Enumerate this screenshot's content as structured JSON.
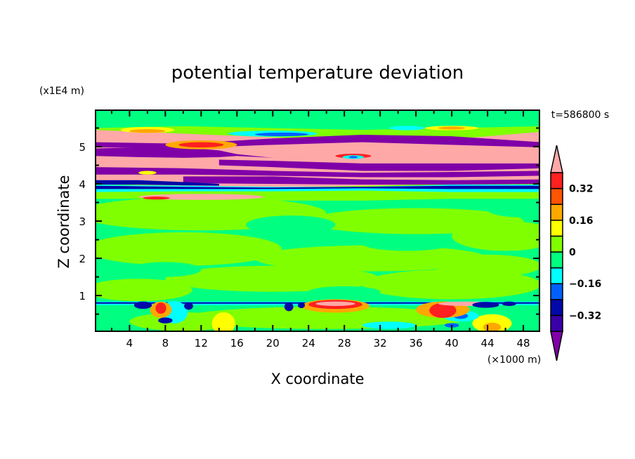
{
  "chart_data": {
    "type": "contour",
    "title": "potential temperature deviation",
    "xlabel": "X coordinate",
    "ylabel": "Z coordinate",
    "x_unit_label": "(×1000 m)",
    "y_unit_label": "(x1E4 m)",
    "time_label": "t=586800 s",
    "xlim": [
      0.2,
      49.8
    ],
    "ylim": [
      0.04,
      5.98
    ],
    "xticks": [
      4,
      8,
      12,
      16,
      20,
      24,
      28,
      32,
      36,
      40,
      44,
      48
    ],
    "xtick_labels": [
      "4",
      "8",
      "12",
      "16",
      "20",
      "24",
      "28",
      "32",
      "36",
      "40",
      "44",
      "48"
    ],
    "x_minor_step": 2,
    "yticks": [
      1,
      2,
      3,
      4,
      5
    ],
    "ytick_labels": [
      "1",
      "2",
      "3",
      "4",
      "5"
    ],
    "y_minor_step": 0.5,
    "colorbar": {
      "levels": [
        -0.4,
        -0.32,
        -0.24,
        -0.16,
        -0.08,
        0,
        0.08,
        0.16,
        0.24,
        0.32,
        0.4
      ],
      "colors": [
        "#3a00a8",
        "#0008a8",
        "#0060ff",
        "#00ffff",
        "#00ff80",
        "#80ff00",
        "#ffff00",
        "#ffa800",
        "#ff5400",
        "#ff2020"
      ],
      "over_color": "#ffa8a8",
      "under_color": "#8000a8",
      "tick_labels": [
        {
          "value": 0.32,
          "label": "0.32"
        },
        {
          "value": 0.16,
          "label": "0.16"
        },
        {
          "value": 0,
          "label": "0"
        },
        {
          "value": -0.16,
          "label": "−0.16"
        },
        {
          "value": -0.32,
          "label": "−0.32"
        }
      ]
    },
    "background_level": "S",
    "level_keys": {
      "U": "#8000a8",
      "I": "#3a00a8",
      "N": "#0008a8",
      "B": "#0060ff",
      "Cy": "#00ffff",
      "S": "#00ff80",
      "C": "#80ff00",
      "Y": "#ffff00",
      "O": "#ffa800",
      "OR": "#ff5400",
      "R": "#ff2020",
      "P": "#ffa8a8"
    },
    "bands": [
      {
        "level": "C",
        "x": [
          0,
          10,
          20,
          30,
          40,
          50
        ],
        "top": [
          5.5,
          5.55,
          5.5,
          5.45,
          5.5,
          5.55
        ],
        "bot": [
          3.6,
          3.6,
          3.55,
          3.55,
          3.6,
          3.6
        ]
      },
      {
        "level": "P",
        "x": [
          0,
          10,
          20,
          30,
          40,
          50
        ],
        "top": [
          5.45,
          5.35,
          5.25,
          5.15,
          5.2,
          5.4
        ],
        "bot": [
          4.0,
          3.95,
          3.9,
          3.95,
          4.0,
          4.0
        ]
      },
      {
        "level": "Cy",
        "x": [
          0,
          10,
          20,
          30,
          40,
          50
        ],
        "top": [
          3.98,
          3.95,
          3.92,
          3.92,
          3.98,
          3.98
        ],
        "bot": [
          3.78,
          3.8,
          3.8,
          3.82,
          3.78,
          3.78
        ]
      },
      {
        "level": "N",
        "x": [
          0,
          10,
          20,
          30,
          40,
          50
        ],
        "top": [
          3.95,
          3.92,
          3.9,
          3.92,
          3.95,
          3.95
        ],
        "bot": [
          3.86,
          3.86,
          3.86,
          3.88,
          3.86,
          3.86
        ]
      },
      {
        "level": "U",
        "x": [
          0,
          10,
          20,
          30,
          40,
          50
        ],
        "top": [
          5.12,
          5.08,
          5.22,
          5.32,
          5.28,
          5.12
        ],
        "bot": [
          4.98,
          4.96,
          5.05,
          5.12,
          5.05,
          4.98
        ]
      },
      {
        "level": "U",
        "x": [
          0,
          5,
          10,
          14,
          16,
          20
        ],
        "top": [
          4.95,
          4.98,
          4.98,
          4.9,
          4.8,
          4.7
        ],
        "bot": [
          4.75,
          4.72,
          4.7,
          4.72,
          4.75,
          4.7
        ]
      },
      {
        "level": "U",
        "x": [
          14,
          20,
          30,
          40,
          50
        ],
        "top": [
          4.65,
          4.62,
          4.55,
          4.55,
          4.55
        ],
        "bot": [
          4.5,
          4.45,
          4.35,
          4.35,
          4.42
        ]
      },
      {
        "level": "U",
        "x": [
          0,
          10,
          20,
          30,
          40,
          50
        ],
        "top": [
          4.45,
          4.42,
          4.35,
          4.3,
          4.32,
          4.35
        ],
        "bot": [
          4.25,
          4.25,
          4.22,
          4.18,
          4.18,
          4.22
        ]
      },
      {
        "level": "U",
        "x": [
          10,
          20,
          30,
          40,
          50
        ],
        "top": [
          4.2,
          4.2,
          4.12,
          4.1,
          4.12
        ],
        "bot": [
          4.02,
          4.0,
          3.98,
          3.98,
          4.0
        ]
      },
      {
        "level": "N",
        "x": [
          0,
          5,
          10,
          14
        ],
        "top": [
          4.1,
          4.1,
          4.05,
          4.0
        ],
        "bot": [
          3.98,
          3.98,
          3.96,
          3.95
        ]
      },
      {
        "level": "Cy",
        "x": [
          0,
          10,
          20,
          30,
          40,
          50
        ],
        "top": [
          0.84,
          0.84,
          0.84,
          0.84,
          0.84,
          0.84
        ],
        "bot": [
          0.74,
          0.74,
          0.74,
          0.74,
          0.74,
          0.74
        ]
      },
      {
        "level": "N",
        "x": [
          0,
          10,
          20,
          30,
          40,
          50
        ],
        "top": [
          0.82,
          0.82,
          0.82,
          0.82,
          0.82,
          0.82
        ],
        "bot": [
          0.78,
          0.78,
          0.78,
          0.78,
          0.78,
          0.78
        ]
      }
    ],
    "blobs": [
      [
        "C",
        12,
        3.2,
        14,
        0.45
      ],
      [
        "C",
        36,
        3.0,
        12,
        0.35
      ],
      [
        "C",
        10,
        2.25,
        11,
        0.45
      ],
      [
        "C",
        31,
        2.0,
        13,
        0.35
      ],
      [
        "C",
        46,
        2.6,
        6,
        0.4
      ],
      [
        "C",
        20,
        1.45,
        12,
        0.35
      ],
      [
        "C",
        40,
        1.3,
        10,
        0.4
      ],
      [
        "C",
        5,
        1.15,
        6,
        0.3
      ],
      [
        "C",
        26,
        0.4,
        16,
        0.3
      ],
      [
        "C",
        10,
        0.3,
        6,
        0.25
      ],
      [
        "C",
        44,
        1.8,
        6,
        0.3
      ],
      [
        "S",
        22,
        2.9,
        5,
        0.25
      ],
      [
        "S",
        8,
        1.7,
        4,
        0.2
      ],
      [
        "S",
        35,
        2.4,
        5,
        0.2
      ],
      [
        "S",
        28,
        1.1,
        4,
        0.15
      ],
      [
        "S",
        48,
        3.3,
        4,
        0.2
      ],
      [
        "S",
        3,
        5.8,
        6,
        0.15
      ],
      [
        "S",
        28,
        5.85,
        6,
        0.12
      ],
      [
        "S",
        47,
        5.85,
        4,
        0.12
      ],
      [
        "Cy",
        20,
        5.35,
        5,
        0.08
      ],
      [
        "B",
        21,
        5.33,
        3,
        0.05
      ],
      [
        "Cy",
        35,
        5.5,
        2,
        0.06
      ],
      [
        "Y",
        6,
        5.45,
        3,
        0.08
      ],
      [
        "O",
        6,
        5.42,
        2,
        0.05
      ],
      [
        "Y",
        40,
        5.5,
        3,
        0.06
      ],
      [
        "O",
        40,
        5.5,
        1.5,
        0.04
      ],
      [
        "O",
        12,
        5.05,
        4,
        0.12
      ],
      [
        "R",
        12,
        5.05,
        2.5,
        0.07
      ],
      [
        "Y",
        6,
        4.3,
        1,
        0.05
      ],
      [
        "R",
        29,
        4.75,
        2,
        0.06
      ],
      [
        "Cy",
        29,
        4.72,
        1.2,
        0.05
      ],
      [
        "B",
        29,
        4.72,
        0.5,
        0.03
      ],
      [
        "P",
        12,
        3.65,
        7,
        0.08
      ],
      [
        "R",
        7,
        3.62,
        1.5,
        0.04
      ],
      [
        "Y",
        14.5,
        0.25,
        1.3,
        0.3
      ],
      [
        "Y",
        44.5,
        0.25,
        2.2,
        0.25
      ],
      [
        "O",
        44.5,
        0.15,
        1,
        0.12
      ],
      [
        "Cy",
        9,
        0.55,
        1.5,
        0.3
      ],
      [
        "Cy",
        33,
        0.2,
        3,
        0.1
      ],
      [
        "Cy",
        41,
        0.45,
        2,
        0.15
      ],
      [
        "B",
        41,
        0.45,
        0.8,
        0.08
      ],
      [
        "O",
        27,
        0.72,
        3.8,
        0.18
      ],
      [
        "R",
        27,
        0.76,
        3,
        0.12
      ],
      [
        "P",
        27,
        0.78,
        2.2,
        0.06
      ],
      [
        "O",
        39,
        0.62,
        3,
        0.22
      ],
      [
        "R",
        39,
        0.6,
        1.5,
        0.2
      ],
      [
        "P",
        41.5,
        0.78,
        3,
        0.06
      ],
      [
        "O",
        7.5,
        0.62,
        1.2,
        0.22
      ],
      [
        "R",
        7.5,
        0.66,
        0.6,
        0.15
      ],
      [
        "N",
        5.5,
        0.74,
        1,
        0.1
      ],
      [
        "N",
        8,
        0.33,
        0.8,
        0.08
      ],
      [
        "N",
        10.6,
        0.72,
        0.5,
        0.1
      ],
      [
        "N",
        21.8,
        0.7,
        0.5,
        0.12
      ],
      [
        "N",
        23.2,
        0.74,
        0.4,
        0.08
      ],
      [
        "N",
        43.8,
        0.75,
        1.5,
        0.08
      ],
      [
        "N",
        46.4,
        0.78,
        0.8,
        0.06
      ],
      [
        "B",
        40,
        0.2,
        0.8,
        0.06
      ]
    ]
  }
}
